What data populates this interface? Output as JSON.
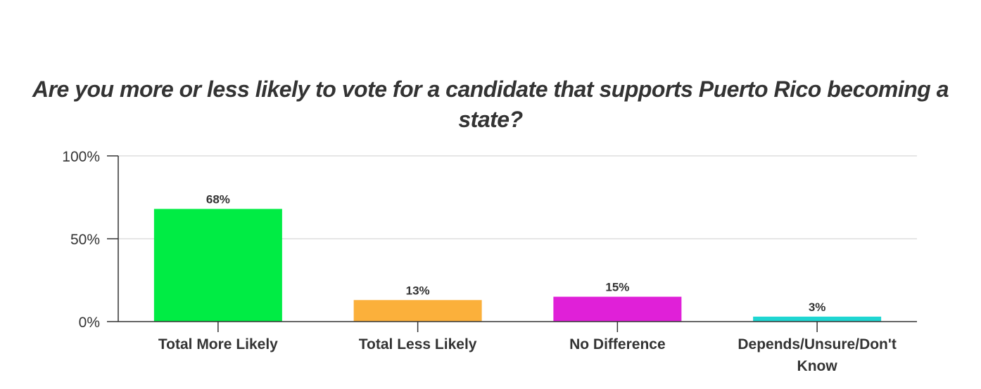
{
  "chart_data": {
    "type": "bar",
    "title": "Are you more or less likely to vote for a candidate that supports Puerto Rico becoming a state?",
    "categories": [
      "Total More Likely",
      "Total Less Likely",
      "No Difference",
      "Depends/Unsure/Don't Know"
    ],
    "category_label_lines": [
      [
        "Total More Likely"
      ],
      [
        "Total Less Likely"
      ],
      [
        "No Difference"
      ],
      [
        "Depends/Unsure/Don't",
        "Know"
      ]
    ],
    "values": [
      68,
      13,
      15,
      3
    ],
    "data_labels": [
      "68%",
      "13%",
      "15%",
      "3%"
    ],
    "colors": [
      "#00ec44",
      "#fbb03b",
      "#e020d8",
      "#1fd6d2"
    ],
    "y_ticks": [
      0,
      50,
      100
    ],
    "y_tick_labels": [
      "0%",
      "50%",
      "100%"
    ],
    "ylim": [
      0,
      100
    ],
    "xlabel": "",
    "ylabel": "",
    "grid": true,
    "legend": "none"
  }
}
